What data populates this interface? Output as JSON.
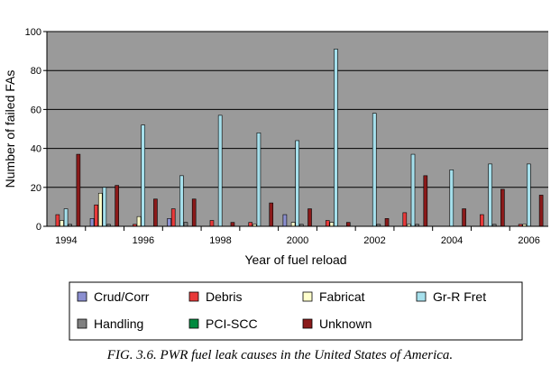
{
  "caption": "FIG. 3.6.  PWR fuel leak causes in the United States of America.",
  "chart_data": {
    "type": "bar",
    "title": "",
    "xlabel": "Year of fuel reload",
    "ylabel": "Number of failed FAs",
    "ylim": [
      0,
      100
    ],
    "yticks": [
      0,
      20,
      40,
      60,
      80,
      100
    ],
    "grid": true,
    "legend_position": "bottom",
    "categories": [
      "1994",
      "1995",
      "1996",
      "1997",
      "1998",
      "1999",
      "2000",
      "2001",
      "2002",
      "2003",
      "2004",
      "2005",
      "2006"
    ],
    "category_tick_labels": [
      "1994",
      "",
      "1996",
      "",
      "1998",
      "",
      "2000",
      "",
      "2002",
      "",
      "2004",
      "",
      "2006"
    ],
    "series": [
      {
        "name": "Crud/Corr",
        "color": "#8b8fd0",
        "values": [
          0,
          4,
          0,
          4,
          0,
          0,
          6,
          0,
          0,
          0,
          0,
          0,
          0
        ]
      },
      {
        "name": "Debris",
        "color": "#e83a3a",
        "values": [
          6,
          11,
          1,
          9,
          3,
          2,
          0,
          3,
          0,
          7,
          0,
          6,
          1
        ]
      },
      {
        "name": "Fabricat",
        "color": "#ffffcc",
        "values": [
          3,
          17,
          5,
          0,
          0,
          1,
          2,
          2,
          0,
          1,
          0,
          0,
          1
        ]
      },
      {
        "name": "Gr-R Fret",
        "color": "#a6e0ec",
        "values": [
          9,
          20,
          52,
          26,
          57,
          48,
          44,
          91,
          58,
          37,
          29,
          32,
          32
        ]
      },
      {
        "name": "Handling",
        "color": "#808080",
        "values": [
          1,
          1,
          0,
          2,
          0,
          0,
          1,
          0,
          1,
          1,
          0,
          1,
          0
        ]
      },
      {
        "name": "PCI-SCC",
        "color": "#008a3e",
        "values": [
          0,
          0,
          0,
          0,
          0,
          0,
          0,
          0,
          0,
          0,
          0,
          0,
          0
        ]
      },
      {
        "name": "Unknown",
        "color": "#8b1a1a",
        "values": [
          37,
          21,
          14,
          14,
          2,
          12,
          9,
          2,
          4,
          26,
          9,
          19,
          16
        ]
      }
    ],
    "colors": {
      "plot_background": "#9a9a9a",
      "gridline": "#000000",
      "bar_outline": "#000000"
    }
  }
}
